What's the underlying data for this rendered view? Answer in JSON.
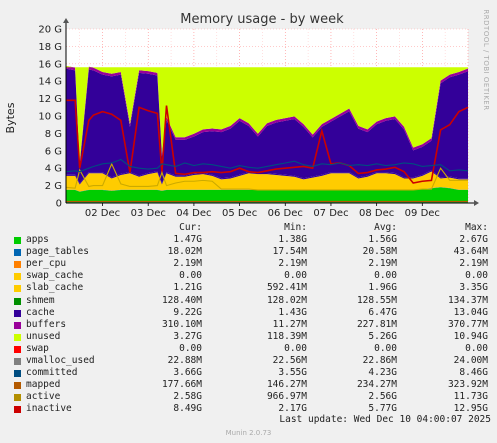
{
  "chart_data": {
    "type": "area",
    "title": "Memory usage - by week",
    "ylabel": "Bytes",
    "side_label": "RRDTOOL / TOBI OETIKER",
    "ylim": [
      0,
      20
    ],
    "y_ticks": [
      "0",
      "2 G",
      "4 G",
      "6 G",
      "8 G",
      "10 G",
      "12 G",
      "14 G",
      "16 G",
      "18 G",
      "20 G"
    ],
    "x_ticks": [
      "02 Dec",
      "03 Dec",
      "04 Dec",
      "05 Dec",
      "06 Dec",
      "07 Dec",
      "08 Dec",
      "09 Dec"
    ],
    "x": [
      1.2,
      1.4,
      1.5,
      1.7,
      1.8,
      2.0,
      2.2,
      2.4,
      2.6,
      2.8,
      3.0,
      3.2,
      3.3,
      3.4,
      3.6,
      3.8,
      4.0,
      4.2,
      4.4,
      4.6,
      4.8,
      5.0,
      5.2,
      5.4,
      5.6,
      5.8,
      6.0,
      6.2,
      6.4,
      6.6,
      6.8,
      7.0,
      7.2,
      7.4,
      7.6,
      7.8,
      8.0,
      8.2,
      8.4,
      8.6,
      8.8,
      9.0,
      9.2,
      9.4,
      9.6,
      9.8,
      10.0
    ],
    "stack_top": 15.6,
    "stacked_series": [
      {
        "name": "apps",
        "color": "#00cc00",
        "values": [
          1.5,
          1.5,
          1.3,
          1.5,
          1.5,
          1.5,
          1.4,
          1.5,
          1.5,
          1.5,
          1.5,
          1.5,
          1.4,
          1.5,
          1.5,
          1.5,
          1.5,
          1.5,
          1.5,
          1.5,
          1.5,
          1.5,
          1.5,
          1.5,
          1.5,
          1.5,
          1.5,
          1.5,
          1.5,
          1.5,
          1.5,
          1.5,
          1.5,
          1.5,
          1.5,
          1.5,
          1.5,
          1.5,
          1.5,
          1.5,
          1.5,
          1.6,
          1.7,
          1.8,
          1.7,
          1.5,
          1.5
        ]
      },
      {
        "name": "page_tables",
        "color": "#0066b3",
        "values": [
          0.02,
          0.02,
          0.02,
          0.02,
          0.02,
          0.02,
          0.02,
          0.02,
          0.02,
          0.02,
          0.02,
          0.02,
          0.02,
          0.02,
          0.02,
          0.02,
          0.02,
          0.02,
          0.02,
          0.02,
          0.02,
          0.02,
          0.02,
          0.02,
          0.02,
          0.02,
          0.02,
          0.02,
          0.02,
          0.02,
          0.02,
          0.02,
          0.02,
          0.02,
          0.02,
          0.02,
          0.02,
          0.02,
          0.02,
          0.02,
          0.02,
          0.02,
          0.02,
          0.02,
          0.02,
          0.02,
          0.02
        ]
      },
      {
        "name": "per_cpu",
        "color": "#ff8000",
        "values": [
          0.0,
          0.0,
          0.0,
          0.0,
          0.0,
          0.0,
          0.0,
          0.0,
          0.0,
          0.0,
          0.0,
          0.0,
          0.0,
          0.0,
          0.0,
          0.0,
          0.0,
          0.0,
          0.0,
          0.0,
          0.0,
          0.0,
          0.0,
          0.0,
          0.0,
          0.0,
          0.0,
          0.0,
          0.0,
          0.0,
          0.0,
          0.0,
          0.0,
          0.0,
          0.0,
          0.0,
          0.0,
          0.0,
          0.0,
          0.0,
          0.0,
          0.0,
          0.0,
          0.0,
          0.0,
          0.0,
          0.0
        ]
      },
      {
        "name": "swap_cache",
        "color": "#ffcc00",
        "values": [
          0.0,
          0.0,
          0.0,
          0.0,
          0.0,
          0.0,
          0.0,
          0.0,
          0.0,
          0.0,
          0.0,
          0.0,
          0.0,
          0.0,
          0.0,
          0.0,
          0.0,
          0.0,
          0.0,
          0.0,
          0.0,
          0.0,
          0.0,
          0.0,
          0.0,
          0.0,
          0.0,
          0.0,
          0.0,
          0.0,
          0.0,
          0.0,
          0.0,
          0.0,
          0.0,
          0.0,
          0.0,
          0.0,
          0.0,
          0.0,
          0.0,
          0.0,
          0.0,
          0.0,
          0.0,
          0.0,
          0.0
        ]
      },
      {
        "name": "slab_cache",
        "color": "#ffcc00",
        "values": [
          1.6,
          1.6,
          0.8,
          1.9,
          1.9,
          1.9,
          1.4,
          1.7,
          1.9,
          1.5,
          1.8,
          2.0,
          0.7,
          1.9,
          1.5,
          1.5,
          1.7,
          1.8,
          1.6,
          1.2,
          1.3,
          1.6,
          1.9,
          1.8,
          1.8,
          1.7,
          1.6,
          1.5,
          1.2,
          1.4,
          1.6,
          1.9,
          1.9,
          1.9,
          1.3,
          1.5,
          1.9,
          1.9,
          1.8,
          1.3,
          1.3,
          1.5,
          1.9,
          1.0,
          1.2,
          1.2,
          1.2
        ]
      },
      {
        "name": "shmem",
        "color": "#330099",
        "values": [
          0.13,
          0.13,
          0.13,
          0.13,
          0.13,
          0.13,
          0.13,
          0.13,
          0.13,
          0.13,
          0.13,
          0.13,
          0.13,
          0.13,
          0.13,
          0.13,
          0.13,
          0.13,
          0.13,
          0.13,
          0.13,
          0.13,
          0.13,
          0.13,
          0.13,
          0.13,
          0.13,
          0.13,
          0.13,
          0.13,
          0.13,
          0.13,
          0.13,
          0.13,
          0.13,
          0.13,
          0.13,
          0.13,
          0.13,
          0.13,
          0.13,
          0.13,
          0.13,
          0.13,
          0.13,
          0.13,
          0.13
        ]
      },
      {
        "name": "cache",
        "color": "#330099",
        "values": [
          12.2,
          12.0,
          2.1,
          11.8,
          11.7,
          11.2,
          11.6,
          11.4,
          5.2,
          11.8,
          11.4,
          11.0,
          3.1,
          6.0,
          4.1,
          4.1,
          4.3,
          4.7,
          5.0,
          5.3,
          5.6,
          6.2,
          5.3,
          4.2,
          5.4,
          5.9,
          6.2,
          6.5,
          5.9,
          4.5,
          5.5,
          5.8,
          6.4,
          7.0,
          5.6,
          5.0,
          5.5,
          5.9,
          6.2,
          5.5,
          3.1,
          3.2,
          3.4,
          10.8,
          11.4,
          11.9,
          12.3
        ]
      },
      {
        "name": "buffers",
        "color": "#990099",
        "values": [
          0.31,
          0.31,
          0.31,
          0.31,
          0.31,
          0.31,
          0.31,
          0.31,
          0.31,
          0.31,
          0.31,
          0.31,
          0.31,
          0.31,
          0.31,
          0.31,
          0.31,
          0.31,
          0.31,
          0.31,
          0.31,
          0.31,
          0.31,
          0.31,
          0.31,
          0.31,
          0.31,
          0.31,
          0.31,
          0.31,
          0.31,
          0.31,
          0.31,
          0.31,
          0.31,
          0.31,
          0.31,
          0.31,
          0.31,
          0.31,
          0.31,
          0.31,
          0.31,
          0.31,
          0.31,
          0.31,
          0.31
        ]
      },
      {
        "name": "unused",
        "color": "#ccff00",
        "values": [
          0,
          0,
          0,
          0,
          0,
          0,
          0,
          0,
          0,
          0,
          0,
          0,
          0,
          0,
          0,
          0,
          0,
          0,
          0,
          0,
          0,
          0,
          0,
          0,
          0,
          0,
          0,
          0,
          0,
          0,
          0,
          0,
          0,
          0,
          0,
          0,
          0,
          0,
          0,
          0,
          0,
          0,
          0,
          0,
          0,
          0,
          0
        ]
      }
    ],
    "line_series": [
      {
        "name": "inactive",
        "color": "#cc0000",
        "values": [
          11.8,
          11.8,
          4.0,
          9.5,
          10.1,
          10.5,
          10.2,
          9.5,
          3.5,
          11.0,
          10.6,
          10.3,
          3.5,
          11.2,
          3.4,
          3.3,
          3.5,
          3.5,
          3.6,
          3.5,
          3.6,
          4.0,
          3.6,
          3.5,
          3.7,
          3.9,
          4.0,
          4.1,
          4.2,
          4.0,
          8.3,
          4.5,
          4.6,
          4.3,
          3.4,
          3.5,
          3.8,
          3.9,
          4.1,
          3.6,
          2.3,
          2.5,
          2.6,
          8.4,
          9.0,
          10.5,
          11.0
        ]
      },
      {
        "name": "active",
        "color": "#ccaa00",
        "values": [
          1.8,
          1.7,
          3.8,
          1.9,
          2.0,
          2.0,
          4.5,
          2.2,
          1.9,
          1.9,
          1.9,
          2.0,
          3.5,
          2.0,
          2.3,
          2.5,
          2.5,
          2.6,
          2.5,
          1.6,
          1.6,
          1.6,
          1.6,
          1.5,
          1.5,
          1.5,
          1.5,
          1.5,
          1.5,
          1.5,
          1.5,
          1.5,
          1.5,
          1.5,
          1.5,
          1.5,
          1.5,
          1.5,
          1.5,
          1.5,
          1.5,
          1.6,
          1.6,
          4.0,
          2.6,
          2.6,
          2.6
        ]
      },
      {
        "name": "mapped",
        "color": "#b35a00",
        "values": [
          0.18,
          0.18,
          0.18,
          0.18,
          0.18,
          0.18,
          0.18,
          0.18,
          0.18,
          0.18,
          0.18,
          0.18,
          0.18,
          0.18,
          0.18,
          0.18,
          0.18,
          0.18,
          0.18,
          0.18,
          0.18,
          0.18,
          0.18,
          0.18,
          0.18,
          0.18,
          0.18,
          0.18,
          0.18,
          0.18,
          0.18,
          0.18,
          0.18,
          0.18,
          0.18,
          0.18,
          0.18,
          0.18,
          0.18,
          0.18,
          0.18,
          0.18,
          0.18,
          0.18,
          0.18,
          0.18,
          0.18
        ]
      },
      {
        "name": "committed",
        "color": "#004d80",
        "values": [
          3.6,
          3.7,
          3.6,
          4.0,
          4.2,
          4.5,
          4.6,
          5.0,
          4.2,
          4.0,
          3.9,
          4.0,
          4.5,
          4.4,
          4.2,
          4.6,
          4.3,
          4.5,
          4.4,
          4.2,
          4.0,
          4.3,
          4.1,
          4.0,
          4.2,
          4.4,
          4.6,
          4.8,
          4.4,
          4.2,
          4.5,
          4.4,
          4.6,
          4.3,
          4.4,
          4.3,
          4.5,
          4.3,
          4.4,
          4.6,
          4.5,
          4.2,
          4.3,
          4.4,
          3.7,
          3.8,
          3.7
        ]
      },
      {
        "name": "vmalloc_used",
        "color": "#808080",
        "values": [
          0.02,
          0.02,
          0.02,
          0.02,
          0.02,
          0.02,
          0.02,
          0.02,
          0.02,
          0.02,
          0.02,
          0.02,
          0.02,
          0.02,
          0.02,
          0.02,
          0.02,
          0.02,
          0.02,
          0.02,
          0.02,
          0.02,
          0.02,
          0.02,
          0.02,
          0.02,
          0.02,
          0.02,
          0.02,
          0.02,
          0.02,
          0.02,
          0.02,
          0.02,
          0.02,
          0.02,
          0.02,
          0.02,
          0.02,
          0.02,
          0.02,
          0.02,
          0.02,
          0.02,
          0.02,
          0.02,
          0.02
        ]
      }
    ],
    "legend_headers": {
      "cur": "Cur:",
      "min": "Min:",
      "avg": "Avg:",
      "max": "Max:"
    },
    "legend": [
      {
        "name": "apps",
        "color": "#00cc00",
        "cur": "1.47G",
        "min": "1.38G",
        "avg": "1.56G",
        "max": "2.67G"
      },
      {
        "name": "page_tables",
        "color": "#0066b3",
        "cur": "18.02M",
        "min": "17.54M",
        "avg": "20.58M",
        "max": "43.64M"
      },
      {
        "name": "per_cpu",
        "color": "#ff8000",
        "cur": "2.19M",
        "min": "2.19M",
        "avg": "2.19M",
        "max": "2.19M"
      },
      {
        "name": "swap_cache",
        "color": "#ffcc00",
        "cur": "0.00",
        "min": "0.00",
        "avg": "0.00",
        "max": "0.00"
      },
      {
        "name": "slab_cache",
        "color": "#ffcc00",
        "cur": "1.21G",
        "min": "592.41M",
        "avg": "1.96G",
        "max": "3.35G"
      },
      {
        "name": "shmem",
        "color": "#008f00",
        "cur": "128.40M",
        "min": "128.02M",
        "avg": "128.55M",
        "max": "134.37M"
      },
      {
        "name": "cache",
        "color": "#330099",
        "cur": "9.22G",
        "min": "1.43G",
        "avg": "6.47G",
        "max": "13.04G"
      },
      {
        "name": "buffers",
        "color": "#990099",
        "cur": "310.10M",
        "min": "11.27M",
        "avg": "227.81M",
        "max": "370.77M"
      },
      {
        "name": "unused",
        "color": "#ccff00",
        "cur": "3.27G",
        "min": "118.39M",
        "avg": "5.26G",
        "max": "10.94G"
      },
      {
        "name": "swap",
        "color": "#ff0000",
        "cur": "0.00",
        "min": "0.00",
        "avg": "0.00",
        "max": "0.00"
      },
      {
        "name": "vmalloc_used",
        "color": "#808080",
        "cur": "22.88M",
        "min": "22.56M",
        "avg": "22.86M",
        "max": "24.00M"
      },
      {
        "name": "committed",
        "color": "#004d80",
        "cur": "3.66G",
        "min": "3.55G",
        "avg": "4.23G",
        "max": "8.46G"
      },
      {
        "name": "mapped",
        "color": "#b35a00",
        "cur": "177.66M",
        "min": "146.27M",
        "avg": "234.27M",
        "max": "323.92M"
      },
      {
        "name": "active",
        "color": "#b38f00",
        "cur": "2.58G",
        "min": "966.97M",
        "avg": "2.56G",
        "max": "11.73G"
      },
      {
        "name": "inactive",
        "color": "#cc0000",
        "cur": "8.49G",
        "min": "2.17G",
        "avg": "5.77G",
        "max": "12.95G"
      }
    ]
  },
  "footer": {
    "last_update": "Last update: Wed Dec 10 04:00:07 2025",
    "version": "Munin 2.0.73"
  }
}
